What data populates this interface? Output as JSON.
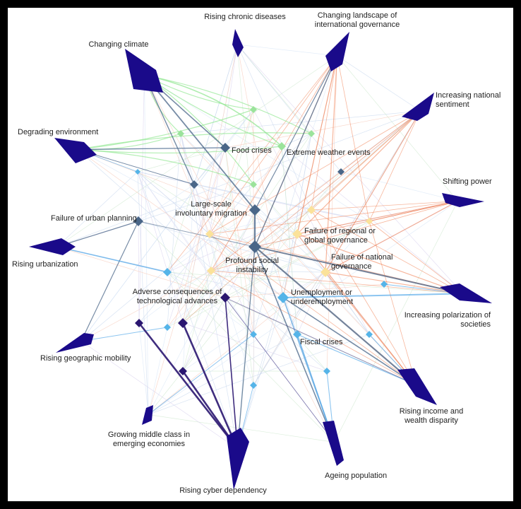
{
  "colors": {
    "driver": "#1a0a8a",
    "societal": "#4a6688",
    "environmental": "#9be39b",
    "geopolitical": "#fbe29a",
    "economic": "#55b4e8",
    "technological": "#2a1670",
    "edge_geo": "#f07a4a",
    "edge_env": "#8ee68e",
    "edge_econ": "#3f9fe6",
    "edge_soc": "#4a6688",
    "edge_tech": "#2a1670",
    "edge_faint": "#c9d9ee"
  },
  "drivers": [
    {
      "id": "rising-chronic-diseases",
      "label": "Rising chronic diseases"
    },
    {
      "id": "changing-landscape",
      "label": "Changing landscape of international governance"
    },
    {
      "id": "changing-climate",
      "label": "Changing climate"
    },
    {
      "id": "increasing-national-sentiment",
      "label": "Increasing national sentiment"
    },
    {
      "id": "degrading-environment",
      "label": "Degrading environment"
    },
    {
      "id": "shifting-power",
      "label": "Shifting power"
    },
    {
      "id": "rising-urbanization",
      "label": "Rising urbanization"
    },
    {
      "id": "increasing-polarization",
      "label": "Increasing polarization of societies"
    },
    {
      "id": "rising-geographic-mobility",
      "label": "Rising geographic mobility"
    },
    {
      "id": "rising-income-disparity",
      "label": "Rising income and wealth disparity"
    },
    {
      "id": "growing-middle-class",
      "label": "Growing middle class in emerging economies"
    },
    {
      "id": "ageing-population",
      "label": "Ageing population"
    },
    {
      "id": "rising-cyber-dependency",
      "label": "Rising cyber dependency"
    }
  ],
  "risks": [
    {
      "id": "food-crises",
      "label": "Food crises"
    },
    {
      "id": "extreme-weather",
      "label": "Extreme weather events"
    },
    {
      "id": "involuntary-migration",
      "label": "Large-scale involuntary migration"
    },
    {
      "id": "failure-urban-planning",
      "label": "Failure of urban planning"
    },
    {
      "id": "failure-regional-governance",
      "label": "Failure of regional or global governance"
    },
    {
      "id": "social-instability",
      "label": "Profound social instability"
    },
    {
      "id": "failure-national-governance",
      "label": "Failure of national governance"
    },
    {
      "id": "adverse-technological",
      "label": "Adverse consequences of technological advances"
    },
    {
      "id": "unemployment",
      "label": "Unemployment or underemployment"
    },
    {
      "id": "fiscal-crises",
      "label": "Fiscal crises"
    }
  ]
}
